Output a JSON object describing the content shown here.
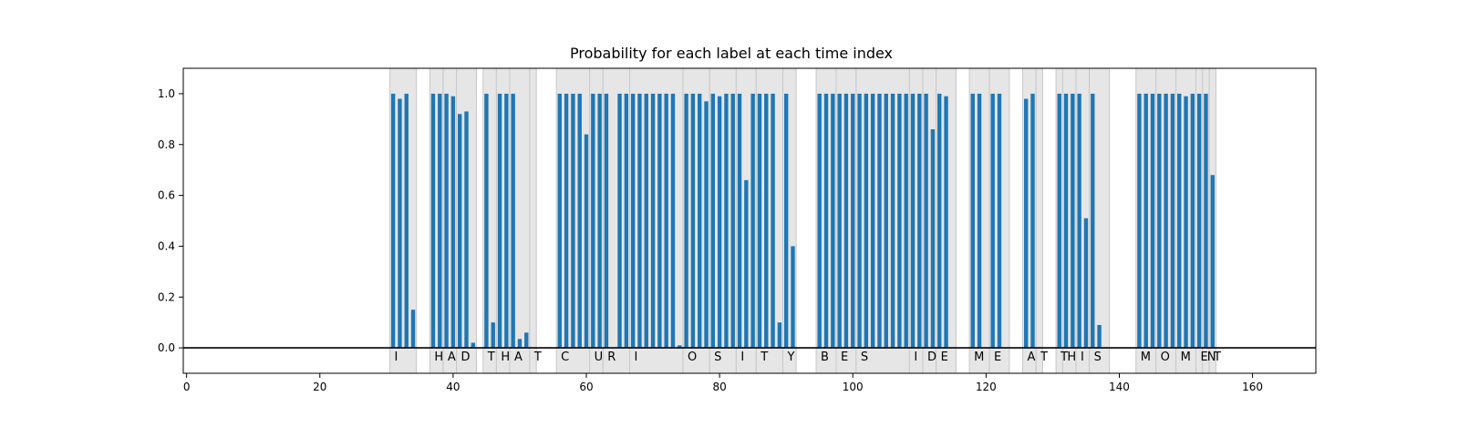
{
  "chart_data": {
    "type": "bar",
    "title": "Probability for each label at each time index",
    "xlabel": "",
    "ylabel": "",
    "xlim": [
      -0.5,
      169.5
    ],
    "ylim": [
      -0.1,
      1.1
    ],
    "x_ticks": [
      0,
      20,
      40,
      60,
      80,
      100,
      120,
      140,
      160
    ],
    "y_ticks": [
      0.0,
      0.2,
      0.4,
      0.6,
      0.8,
      1.0
    ],
    "y_tick_labels": [
      "0.0",
      "0.2",
      "0.4",
      "0.6",
      "0.8",
      "1.0"
    ],
    "grid": false,
    "bar_color": "#1f77b4",
    "segment_color": "#e6e6e6",
    "segment_edge_color": "#c8c8c8",
    "segments": [
      {
        "label": "I",
        "start": 30.5,
        "end": 34.5
      },
      {
        "label": "H",
        "start": 36.5,
        "end": 38.5
      },
      {
        "label": "A",
        "start": 38.5,
        "end": 40.5
      },
      {
        "label": "D",
        "start": 40.5,
        "end": 43.5
      },
      {
        "label": "T",
        "start": 44.5,
        "end": 46.5
      },
      {
        "label": "H",
        "start": 46.5,
        "end": 48.5
      },
      {
        "label": "A",
        "start": 48.5,
        "end": 51.5
      },
      {
        "label": "T",
        "start": 51.5,
        "end": 52.5
      },
      {
        "label": "C",
        "start": 55.5,
        "end": 60.5
      },
      {
        "label": "U",
        "start": 60.5,
        "end": 62.5
      },
      {
        "label": "R",
        "start": 62.5,
        "end": 66.5
      },
      {
        "label": "I",
        "start": 66.5,
        "end": 74.5
      },
      {
        "label": "O",
        "start": 74.5,
        "end": 78.5
      },
      {
        "label": "S",
        "start": 78.5,
        "end": 82.5
      },
      {
        "label": "I",
        "start": 82.5,
        "end": 85.5
      },
      {
        "label": "T",
        "start": 85.5,
        "end": 89.5
      },
      {
        "label": "Y",
        "start": 89.5,
        "end": 91.5
      },
      {
        "label": "B",
        "start": 94.5,
        "end": 97.5
      },
      {
        "label": "E",
        "start": 97.5,
        "end": 100.5
      },
      {
        "label": "S",
        "start": 100.5,
        "end": 108.5
      },
      {
        "label": "I",
        "start": 108.5,
        "end": 110.5
      },
      {
        "label": "D",
        "start": 110.5,
        "end": 112.5
      },
      {
        "label": "E",
        "start": 112.5,
        "end": 115.5
      },
      {
        "label": "M",
        "start": 117.5,
        "end": 120.5
      },
      {
        "label": "E",
        "start": 120.5,
        "end": 123.5
      },
      {
        "label": "A",
        "start": 125.5,
        "end": 127.5
      },
      {
        "label": "T",
        "start": 127.5,
        "end": 128.5
      },
      {
        "label": "T",
        "start": 130.5,
        "end": 131.5
      },
      {
        "label": "H",
        "start": 131.5,
        "end": 133.5
      },
      {
        "label": "I",
        "start": 133.5,
        "end": 135.5
      },
      {
        "label": "S",
        "start": 135.5,
        "end": 138.5
      },
      {
        "label": "M",
        "start": 142.5,
        "end": 145.5
      },
      {
        "label": "O",
        "start": 145.5,
        "end": 148.5
      },
      {
        "label": "M",
        "start": 148.5,
        "end": 151.5
      },
      {
        "label": "E",
        "start": 151.5,
        "end": 152.5
      },
      {
        "label": "N",
        "start": 152.5,
        "end": 153.5
      },
      {
        "label": "T",
        "start": 153.5,
        "end": 154.5
      }
    ],
    "x": [
      31,
      32,
      33,
      34,
      37,
      38,
      39,
      40,
      41,
      42,
      43,
      45,
      46,
      47,
      48,
      49,
      50,
      51,
      56,
      57,
      58,
      59,
      60,
      61,
      62,
      63,
      65,
      66,
      67,
      68,
      69,
      70,
      71,
      72,
      73,
      74,
      75,
      76,
      77,
      78,
      79,
      80,
      81,
      82,
      83,
      84,
      85,
      86,
      87,
      88,
      89,
      90,
      91,
      95,
      96,
      97,
      98,
      99,
      100,
      101,
      102,
      103,
      104,
      105,
      106,
      107,
      108,
      109,
      110,
      111,
      112,
      113,
      114,
      118,
      119,
      121,
      122,
      126,
      127,
      131,
      132,
      133,
      134,
      135,
      136,
      137,
      143,
      144,
      145,
      146,
      147,
      148,
      149,
      150,
      151,
      152,
      153,
      154
    ],
    "values": [
      1.0,
      0.98,
      1.0,
      0.15,
      1.0,
      1.0,
      1.0,
      0.99,
      0.92,
      0.93,
      0.02,
      1.0,
      0.1,
      1.0,
      1.0,
      1.0,
      0.035,
      0.06,
      1.0,
      1.0,
      1.0,
      1.0,
      0.84,
      1.0,
      1.0,
      1.0,
      1.0,
      1.0,
      1.0,
      1.0,
      1.0,
      1.0,
      1.0,
      1.0,
      1.0,
      0.01,
      1.0,
      1.0,
      1.0,
      0.97,
      1.0,
      0.99,
      1.0,
      1.0,
      1.0,
      0.66,
      1.0,
      1.0,
      1.0,
      1.0,
      0.1,
      1.0,
      0.4,
      1.0,
      1.0,
      1.0,
      1.0,
      1.0,
      1.0,
      1.0,
      1.0,
      1.0,
      1.0,
      1.0,
      1.0,
      1.0,
      1.0,
      1.0,
      1.0,
      1.0,
      0.86,
      1.0,
      0.99,
      1.0,
      1.0,
      1.0,
      1.0,
      0.98,
      1.0,
      1.0,
      1.0,
      1.0,
      1.0,
      0.51,
      1.0,
      0.09,
      1.0,
      1.0,
      1.0,
      1.0,
      1.0,
      1.0,
      1.0,
      0.99,
      1.0,
      1.0,
      1.0,
      0.68
    ]
  }
}
